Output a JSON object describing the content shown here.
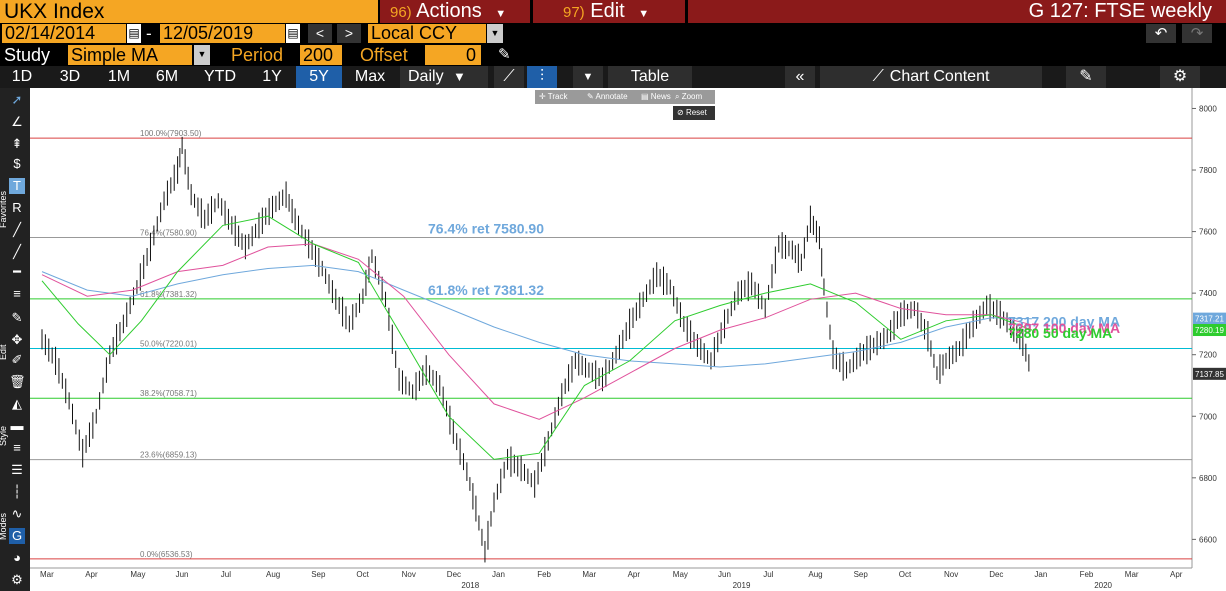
{
  "topbar": {
    "ticker": "UKX Index",
    "actions_num": "96)",
    "actions_label": "Actions",
    "edit_num": "97)",
    "edit_label": "Edit",
    "window_title": "G 127: FTSE weekly"
  },
  "range": {
    "start_date": "02/14/2014",
    "separator": "-",
    "end_date": "12/05/2019",
    "prev": "<",
    "next": ">",
    "currency": "Local CCY"
  },
  "study": {
    "label": "Study",
    "type": "Simple MA",
    "period_label": "Period",
    "period": "200",
    "offset_label": "Offset",
    "offset": "0"
  },
  "toolbar": {
    "ranges": [
      "1D",
      "3D",
      "1M",
      "6M",
      "YTD",
      "1Y",
      "5Y",
      "Max"
    ],
    "active_range": "5Y",
    "frequency": "Daily",
    "table": "Table",
    "chart_content": "Chart Content"
  },
  "float": {
    "track": "Track",
    "annotate": "Annotate",
    "news": "News",
    "zoom": "Zoom",
    "reset": "Reset"
  },
  "side_labels": [
    "Favorites",
    "Edit",
    "Style",
    "Modes"
  ],
  "colors": {
    "accent_amber": "#f5a623",
    "menu_red": "#8b1a1a",
    "ma200": "#6fa8dc",
    "ma100": "#e0529c",
    "ma50": "#2ecc2e",
    "fib_top": "#d94040",
    "fib_cyan": "#00bcd4",
    "fib_green": "#2ecc2e"
  },
  "chart_data": {
    "type": "line",
    "title": "",
    "y_ticks": [
      6600,
      6800,
      7000,
      7200,
      7400,
      7600,
      7800,
      8000
    ],
    "ylim": [
      6520,
      8060
    ],
    "x_months": [
      "Mar",
      "Apr",
      "May",
      "Jun",
      "Jul",
      "Aug",
      "Sep",
      "Oct",
      "Nov",
      "Dec",
      "Jan",
      "Feb",
      "Mar",
      "Apr",
      "May",
      "Jun",
      "Jul",
      "Aug",
      "Sep",
      "Oct",
      "Nov",
      "Dec",
      "Jan",
      "Feb",
      "Mar",
      "Apr"
    ],
    "x_years": [
      "2018",
      "2019",
      "2020"
    ],
    "fib_levels": [
      {
        "label": "100.0%(7903.50)",
        "value": 7903.5
      },
      {
        "label": "76.4%(7580.90)",
        "value": 7580.9
      },
      {
        "label": "61.8%(7381.32)",
        "value": 7381.32
      },
      {
        "label": "50.0%(7220.01)",
        "value": 7220.01
      },
      {
        "label": "38.2%(7058.71)",
        "value": 7058.71
      },
      {
        "label": "23.6%(6859.13)",
        "value": 6859.13
      },
      {
        "label": "0.0%(6536.53)",
        "value": 6536.53
      }
    ],
    "annotations": [
      {
        "text": "76.4% ret 7580.90",
        "value": 7580.9
      },
      {
        "text": "61.8% ret 7381.32",
        "value": 7381.32
      },
      {
        "text": "7317 200 day MA",
        "value": 7317
      },
      {
        "text": "7297 100 day MA",
        "value": 7297
      },
      {
        "text": "7280 50 day MA",
        "value": 7280
      }
    ],
    "price_tags": [
      {
        "text": "7317.21",
        "value": 7317.21
      },
      {
        "text": "7280.19",
        "value": 7280.19
      },
      {
        "text": "7137.85",
        "value": 7137.85
      }
    ],
    "price": [
      [
        0,
        7250
      ],
      [
        0.3,
        7180
      ],
      [
        0.6,
        7050
      ],
      [
        0.9,
        6880
      ],
      [
        1.2,
        7000
      ],
      [
        1.5,
        7200
      ],
      [
        1.8,
        7300
      ],
      [
        2.1,
        7420
      ],
      [
        2.4,
        7550
      ],
      [
        2.7,
        7700
      ],
      [
        3.0,
        7800
      ],
      [
        3.1,
        7880
      ],
      [
        3.3,
        7720
      ],
      [
        3.6,
        7640
      ],
      [
        3.9,
        7700
      ],
      [
        4.2,
        7620
      ],
      [
        4.5,
        7550
      ],
      [
        4.8,
        7620
      ],
      [
        5.1,
        7680
      ],
      [
        5.4,
        7720
      ],
      [
        5.6,
        7640
      ],
      [
        5.9,
        7560
      ],
      [
        6.2,
        7480
      ],
      [
        6.5,
        7380
      ],
      [
        6.8,
        7300
      ],
      [
        7.1,
        7390
      ],
      [
        7.3,
        7520
      ],
      [
        7.6,
        7380
      ],
      [
        7.9,
        7120
      ],
      [
        8.2,
        7080
      ],
      [
        8.5,
        7150
      ],
      [
        8.8,
        7100
      ],
      [
        9.1,
        6950
      ],
      [
        9.4,
        6820
      ],
      [
        9.6,
        6700
      ],
      [
        9.8,
        6560
      ],
      [
        10.0,
        6720
      ],
      [
        10.3,
        6860
      ],
      [
        10.6,
        6830
      ],
      [
        10.9,
        6780
      ],
      [
        11.2,
        6920
      ],
      [
        11.5,
        7070
      ],
      [
        11.8,
        7180
      ],
      [
        12.1,
        7150
      ],
      [
        12.4,
        7120
      ],
      [
        12.7,
        7200
      ],
      [
        13.0,
        7300
      ],
      [
        13.3,
        7380
      ],
      [
        13.6,
        7460
      ],
      [
        13.9,
        7420
      ],
      [
        14.2,
        7300
      ],
      [
        14.5,
        7230
      ],
      [
        14.8,
        7180
      ],
      [
        15.1,
        7300
      ],
      [
        15.4,
        7400
      ],
      [
        15.7,
        7430
      ],
      [
        16.0,
        7350
      ],
      [
        16.3,
        7560
      ],
      [
        16.6,
        7540
      ],
      [
        16.8,
        7500
      ],
      [
        17.0,
        7640
      ],
      [
        17.2,
        7580
      ],
      [
        17.3,
        7420
      ],
      [
        17.5,
        7200
      ],
      [
        17.8,
        7150
      ],
      [
        18.1,
        7200
      ],
      [
        18.4,
        7230
      ],
      [
        18.7,
        7260
      ],
      [
        19.0,
        7330
      ],
      [
        19.3,
        7350
      ],
      [
        19.6,
        7260
      ],
      [
        19.8,
        7140
      ],
      [
        20.0,
        7180
      ],
      [
        20.3,
        7220
      ],
      [
        20.6,
        7300
      ],
      [
        20.9,
        7360
      ],
      [
        21.2,
        7330
      ],
      [
        21.5,
        7280
      ],
      [
        21.7,
        7240
      ],
      [
        21.9,
        7140
      ]
    ],
    "ma200": [
      [
        0,
        7470
      ],
      [
        1,
        7410
      ],
      [
        2,
        7390
      ],
      [
        3,
        7430
      ],
      [
        4,
        7460
      ],
      [
        5,
        7480
      ],
      [
        6,
        7490
      ],
      [
        7,
        7470
      ],
      [
        8,
        7410
      ],
      [
        9,
        7350
      ],
      [
        10,
        7290
      ],
      [
        11,
        7240
      ],
      [
        12,
        7200
      ],
      [
        13,
        7180
      ],
      [
        14,
        7170
      ],
      [
        15,
        7160
      ],
      [
        16,
        7170
      ],
      [
        17,
        7190
      ],
      [
        18,
        7210
      ],
      [
        19,
        7240
      ],
      [
        20,
        7290
      ],
      [
        21,
        7320
      ],
      [
        21.9,
        7317
      ]
    ],
    "ma100": [
      [
        0,
        7460
      ],
      [
        1,
        7390
      ],
      [
        2,
        7410
      ],
      [
        3,
        7470
      ],
      [
        4,
        7490
      ],
      [
        5,
        7550
      ],
      [
        6,
        7560
      ],
      [
        7,
        7510
      ],
      [
        8,
        7390
      ],
      [
        9,
        7200
      ],
      [
        10,
        7040
      ],
      [
        11,
        6990
      ],
      [
        12,
        7060
      ],
      [
        13,
        7140
      ],
      [
        14,
        7220
      ],
      [
        15,
        7280
      ],
      [
        16,
        7320
      ],
      [
        17,
        7380
      ],
      [
        18,
        7400
      ],
      [
        19,
        7350
      ],
      [
        20,
        7330
      ],
      [
        21,
        7330
      ],
      [
        21.9,
        7297
      ]
    ],
    "ma50": [
      [
        0,
        7440
      ],
      [
        0.8,
        7300
      ],
      [
        1.5,
        7200
      ],
      [
        2.2,
        7310
      ],
      [
        3,
        7470
      ],
      [
        4,
        7620
      ],
      [
        5,
        7650
      ],
      [
        6,
        7560
      ],
      [
        7,
        7500
      ],
      [
        8,
        7250
      ],
      [
        9,
        7000
      ],
      [
        10,
        6860
      ],
      [
        11,
        6880
      ],
      [
        12,
        7100
      ],
      [
        13,
        7180
      ],
      [
        14,
        7310
      ],
      [
        15,
        7360
      ],
      [
        16,
        7400
      ],
      [
        17,
        7430
      ],
      [
        18,
        7370
      ],
      [
        19,
        7250
      ],
      [
        20,
        7310
      ],
      [
        21,
        7330
      ],
      [
        21.9,
        7280
      ]
    ]
  }
}
